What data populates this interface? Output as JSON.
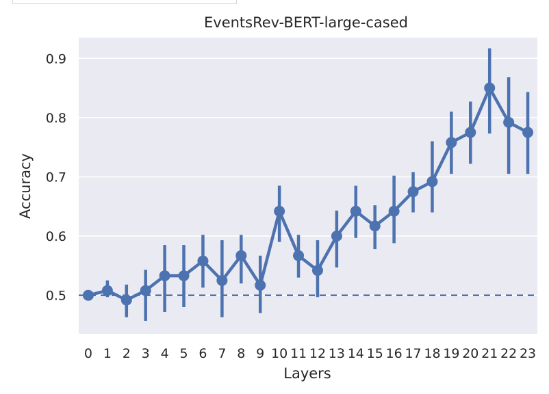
{
  "chart_data": {
    "type": "line",
    "title": "EventsRev-BERT-large-cased",
    "xlabel": "Layers",
    "ylabel": "Accuracy",
    "categories": [
      "0",
      "1",
      "2",
      "3",
      "4",
      "5",
      "6",
      "7",
      "8",
      "9",
      "10",
      "11",
      "12",
      "13",
      "14",
      "15",
      "16",
      "17",
      "18",
      "19",
      "20",
      "21",
      "22",
      "23"
    ],
    "series": [
      {
        "values": [
          0.5,
          0.508,
          0.492,
          0.508,
          0.533,
          0.533,
          0.558,
          0.525,
          0.567,
          0.517,
          0.642,
          0.567,
          0.542,
          0.6,
          0.642,
          0.617,
          0.642,
          0.675,
          0.692,
          0.758,
          0.775,
          0.85,
          0.792,
          0.775
        ],
        "err_low": [
          0.495,
          0.497,
          0.463,
          0.457,
          0.472,
          0.48,
          0.513,
          0.463,
          0.52,
          0.47,
          0.59,
          0.53,
          0.497,
          0.547,
          0.597,
          0.578,
          0.588,
          0.64,
          0.64,
          0.705,
          0.722,
          0.773,
          0.705,
          0.705
        ],
        "err_high": [
          0.505,
          0.525,
          0.518,
          0.543,
          0.585,
          0.585,
          0.602,
          0.593,
          0.602,
          0.567,
          0.685,
          0.602,
          0.593,
          0.643,
          0.685,
          0.652,
          0.702,
          0.708,
          0.76,
          0.81,
          0.827,
          0.917,
          0.868,
          0.843
        ]
      }
    ],
    "baseline": 0.5,
    "yticks": [
      "0.5",
      "0.6",
      "0.7",
      "0.8",
      "0.9"
    ],
    "ylim": [
      0.435,
      0.935
    ],
    "grid": true,
    "colors": {
      "line": "#4c72b0",
      "background": "#eaeaf2",
      "grid": "#ffffff"
    }
  }
}
